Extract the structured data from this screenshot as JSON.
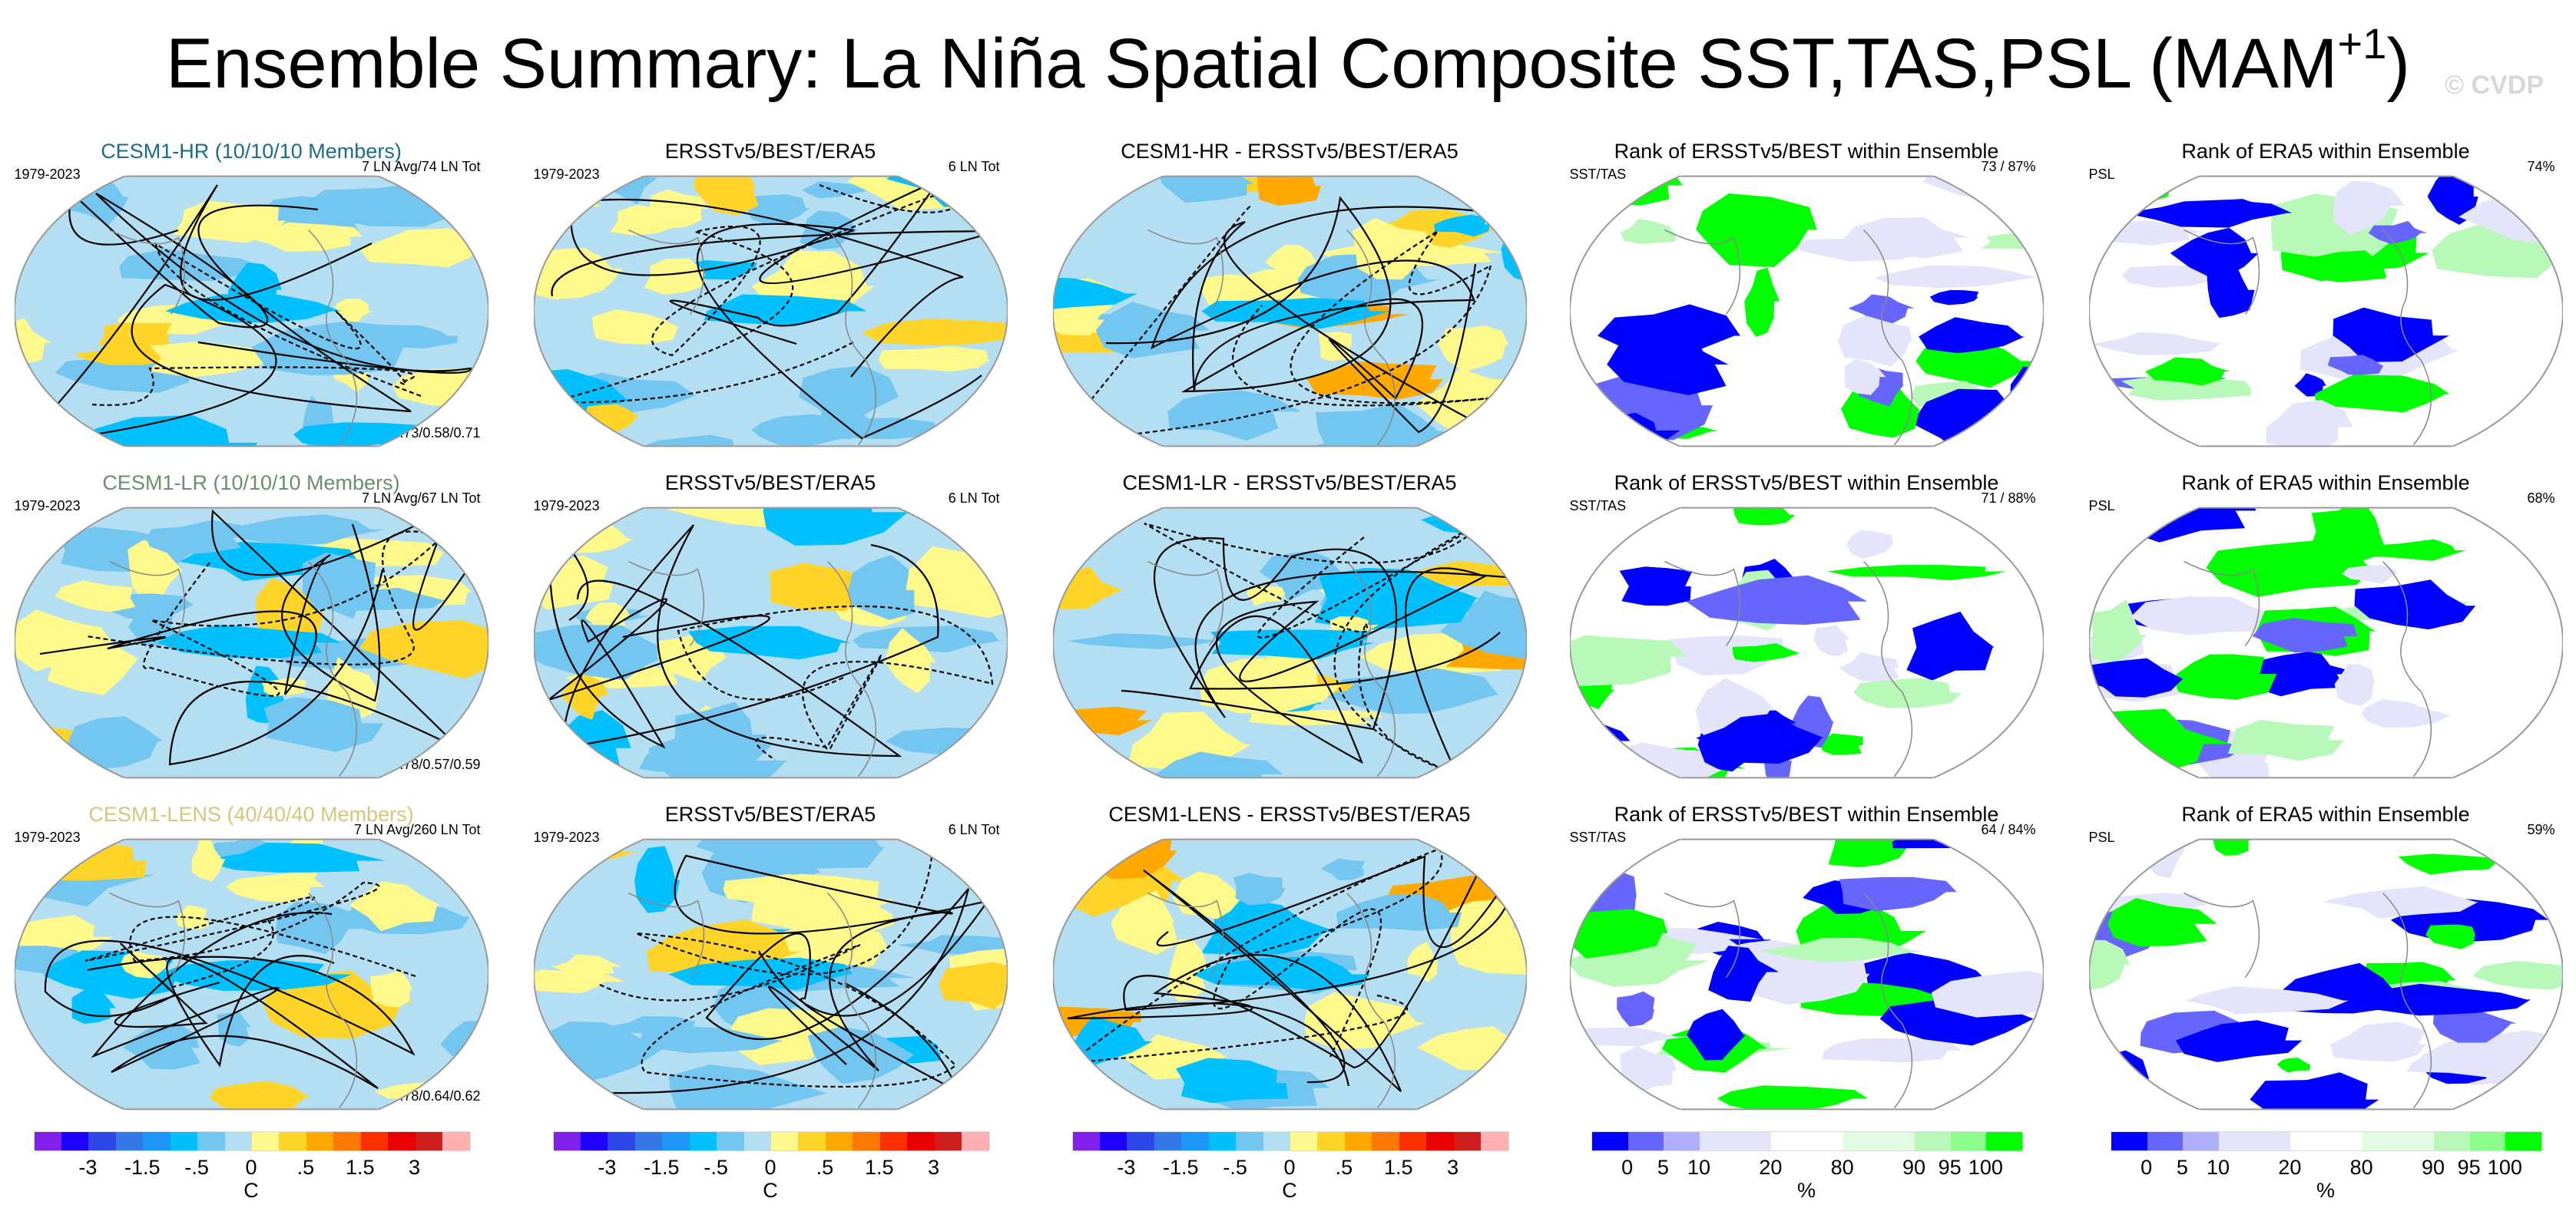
{
  "title": {
    "main": "Ensemble Summary: La Niña Spatial Composite SST,TAS,PSL (MAM",
    "superscript": "+1",
    "close": ")"
  },
  "watermark": "© CVDP",
  "rows": [
    {
      "panels": [
        {
          "title": "CESM1-HR (10/10/10 Members)",
          "title_color": "#1a6c8c",
          "left": "1979-2023",
          "right": "7 LN Avg/74 LN Tot",
          "bottom": "r=0.73/0.58/0.71",
          "type": "temp"
        },
        {
          "title": "ERSSTv5/BEST/ERA5",
          "title_color": "#000000",
          "left": "1979-2023",
          "right": "6 LN Tot",
          "bottom": "",
          "type": "temp"
        },
        {
          "title": "CESM1-HR - ERSSTv5/BEST/ERA5",
          "title_color": "#000000",
          "left": "",
          "right": "",
          "bottom": "",
          "type": "diff"
        },
        {
          "title": "Rank of ERSSTv5/BEST within Ensemble",
          "title_color": "#000000",
          "left": "SST/TAS",
          "right": "73 /  87%",
          "bottom": "",
          "type": "rank"
        },
        {
          "title": "Rank of ERA5 within Ensemble",
          "title_color": "#000000",
          "left": "PSL",
          "right": "74%",
          "bottom": "",
          "type": "rank"
        }
      ]
    },
    {
      "panels": [
        {
          "title": "CESM1-LR (10/10/10 Members)",
          "title_color": "#6a8f6a",
          "left": "1979-2023",
          "right": "7 LN Avg/67 LN Tot",
          "bottom": "r=0.78/0.57/0.59",
          "type": "temp"
        },
        {
          "title": "ERSSTv5/BEST/ERA5",
          "title_color": "#000000",
          "left": "1979-2023",
          "right": "6 LN Tot",
          "bottom": "",
          "type": "temp"
        },
        {
          "title": "CESM1-LR - ERSSTv5/BEST/ERA5",
          "title_color": "#000000",
          "left": "",
          "right": "",
          "bottom": "",
          "type": "diff"
        },
        {
          "title": "Rank of ERSSTv5/BEST within Ensemble",
          "title_color": "#000000",
          "left": "SST/TAS",
          "right": "71 /  88%",
          "bottom": "",
          "type": "rank"
        },
        {
          "title": "Rank of ERA5 within Ensemble",
          "title_color": "#000000",
          "left": "PSL",
          "right": "68%",
          "bottom": "",
          "type": "rank"
        }
      ]
    },
    {
      "panels": [
        {
          "title": "CESM1-LENS (40/40/40 Members)",
          "title_color": "#d4c77a",
          "left": "1979-2023",
          "right": "7 LN Avg/260 LN Tot",
          "bottom": "r=0.78/0.64/0.62",
          "type": "temp"
        },
        {
          "title": "ERSSTv5/BEST/ERA5",
          "title_color": "#000000",
          "left": "1979-2023",
          "right": "6 LN Tot",
          "bottom": "",
          "type": "temp"
        },
        {
          "title": "CESM1-LENS - ERSSTv5/BEST/ERA5",
          "title_color": "#000000",
          "left": "",
          "right": "",
          "bottom": "",
          "type": "diff"
        },
        {
          "title": "Rank of ERSSTv5/BEST within Ensemble",
          "title_color": "#000000",
          "left": "SST/TAS",
          "right": "64 /  84%",
          "bottom": "",
          "type": "rank"
        },
        {
          "title": "Rank of ERA5 within Ensemble",
          "title_color": "#000000",
          "left": "PSL",
          "right": "59%",
          "bottom": "",
          "type": "rank"
        }
      ]
    }
  ],
  "chart_data": {
    "type": "heatmap",
    "title": "Ensemble Summary: La Niña Spatial Composite SST,TAS,PSL (MAM+1)",
    "colorbars": [
      {
        "kind": "temp",
        "unit": "C",
        "colors": [
          "#8020e8",
          "#1e00ff",
          "#2e48e8",
          "#3478e8",
          "#1e96ff",
          "#00c0ff",
          "#73c6f0",
          "#b4def2",
          "#fff88a",
          "#ffd428",
          "#ffa800",
          "#ff7800",
          "#ff3000",
          "#e80000",
          "#d01e1e",
          "#ffb0b0"
        ],
        "widths": [
          1,
          1,
          1,
          1,
          1,
          1,
          1,
          1,
          1,
          1,
          1,
          1,
          1,
          1,
          1,
          1
        ],
        "ticks": [
          {
            "label": "-3",
            "boundary": 2
          },
          {
            "label": "-1.5",
            "boundary": 4
          },
          {
            "label": "-.5",
            "boundary": 6
          },
          {
            "label": "0",
            "boundary": 8
          },
          {
            "label": ".5",
            "boundary": 10
          },
          {
            "label": "1.5",
            "boundary": 12
          },
          {
            "label": "3",
            "boundary": 14
          }
        ]
      },
      {
        "kind": "rank",
        "unit": "%",
        "colors": [
          "#0000ff",
          "#6666ff",
          "#b0b0ff",
          "#e4e4fa",
          "#ffffff",
          "#e2fce2",
          "#b8f8b8",
          "#8cfc8c",
          "#00ff00"
        ],
        "widths": [
          1,
          1,
          1,
          2,
          2,
          2,
          1,
          1,
          1
        ],
        "ticks": [
          {
            "label": "0",
            "boundary": 1
          },
          {
            "label": "5",
            "boundary": 2
          },
          {
            "label": "10",
            "boundary": 3
          },
          {
            "label": "20",
            "boundary": 4
          },
          {
            "label": "80",
            "boundary": 5
          },
          {
            "label": "90",
            "boundary": 6
          },
          {
            "label": "95",
            "boundary": 7
          },
          {
            "label": "100",
            "boundary": 8
          }
        ]
      }
    ],
    "column_colorbar": [
      "temp",
      "temp",
      "temp",
      "rank",
      "rank"
    ]
  }
}
